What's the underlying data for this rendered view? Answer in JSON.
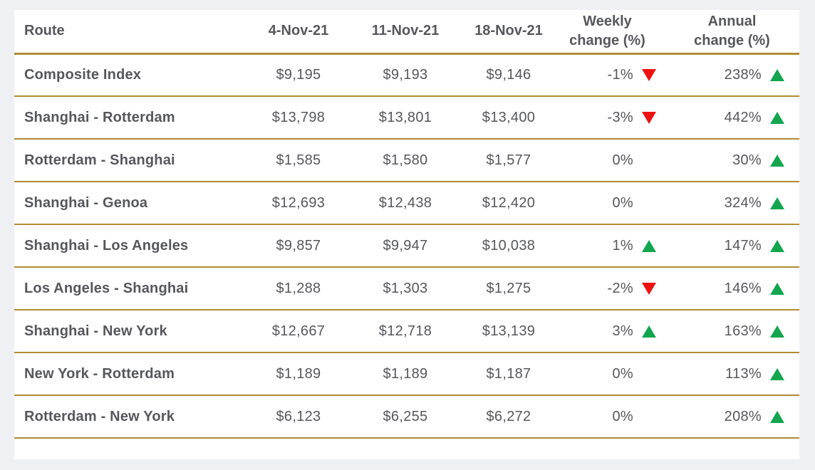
{
  "colors": {
    "gold_divider": "#b08c33",
    "text_gray": "#56575b",
    "up_green": "#13a64e",
    "down_red": "#ee1111",
    "card_white": "#ffffff",
    "page_background": "#eff0f3"
  },
  "header": {
    "route": "Route",
    "date1": "4-Nov-21",
    "date2": "11-Nov-21",
    "date3": "18-Nov-21",
    "weekly": "Weekly change (%)",
    "annual": "Annual change (%)"
  },
  "chart_data": {
    "type": "table",
    "columns": [
      "Route",
      "4-Nov-21",
      "11-Nov-21",
      "18-Nov-21",
      "Weekly change (%)",
      "Annual change (%)"
    ],
    "rows": [
      {
        "route": "Composite Index",
        "nov4": "$9,195",
        "nov11": "$9,193",
        "nov18": "$9,146",
        "weekly": "-1%",
        "weekly_dir": "down",
        "annual": "238%",
        "annual_dir": "up"
      },
      {
        "route": "Shanghai - Rotterdam",
        "nov4": "$13,798",
        "nov11": "$13,801",
        "nov18": "$13,400",
        "weekly": "-3%",
        "weekly_dir": "down",
        "annual": "442%",
        "annual_dir": "up"
      },
      {
        "route": "Rotterdam - Shanghai",
        "nov4": "$1,585",
        "nov11": "$1,580",
        "nov18": "$1,577",
        "weekly": "0%",
        "weekly_dir": "none",
        "annual": "30%",
        "annual_dir": "up"
      },
      {
        "route": "Shanghai - Genoa",
        "nov4": "$12,693",
        "nov11": "$12,438",
        "nov18": "$12,420",
        "weekly": "0%",
        "weekly_dir": "none",
        "annual": "324%",
        "annual_dir": "up"
      },
      {
        "route": "Shanghai - Los Angeles",
        "nov4": "$9,857",
        "nov11": "$9,947",
        "nov18": "$10,038",
        "weekly": "1%",
        "weekly_dir": "up",
        "annual": "147%",
        "annual_dir": "up"
      },
      {
        "route": "Los Angeles - Shanghai",
        "nov4": "$1,288",
        "nov11": "$1,303",
        "nov18": "$1,275",
        "weekly": "-2%",
        "weekly_dir": "down",
        "annual": "146%",
        "annual_dir": "up"
      },
      {
        "route": "Shanghai - New York",
        "nov4": "$12,667",
        "nov11": "$12,718",
        "nov18": "$13,139",
        "weekly": "3%",
        "weekly_dir": "up",
        "annual": "163%",
        "annual_dir": "up"
      },
      {
        "route": "New York - Rotterdam",
        "nov4": "$1,189",
        "nov11": "$1,189",
        "nov18": "$1,187",
        "weekly": "0%",
        "weekly_dir": "none",
        "annual": "113%",
        "annual_dir": "up"
      },
      {
        "route": "Rotterdam - New York",
        "nov4": "$6,123",
        "nov11": "$6,255",
        "nov18": "$6,272",
        "weekly": "0%",
        "weekly_dir": "none",
        "annual": "208%",
        "annual_dir": "up"
      }
    ]
  }
}
